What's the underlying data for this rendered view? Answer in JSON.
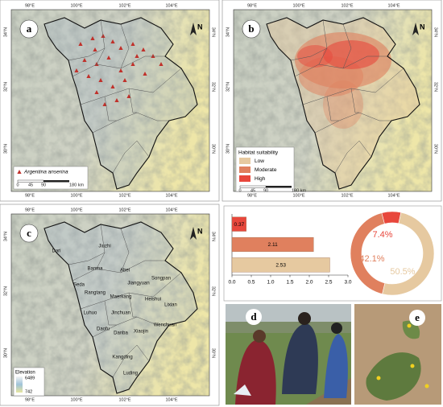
{
  "panel_labels": [
    "a",
    "b",
    "c",
    "d",
    "e"
  ],
  "map": {
    "lon_labels": [
      "98°E",
      "100°E",
      "102°E",
      "104°E"
    ],
    "lat_labels": [
      "34°N",
      "32°N",
      "30°N"
    ],
    "north": "N",
    "scale_bar": [
      "0",
      "45",
      "90",
      "180 km"
    ]
  },
  "panel_a_legend": "Argentina anserina",
  "panel_b_legend": {
    "title": "Habitat suitability",
    "items": [
      "Low",
      "Moderate",
      "High"
    ]
  },
  "panel_c_legend": {
    "title": "Elevation",
    "max": 6489,
    "min": 742
  },
  "panel_c_places": [
    "Dari",
    "Jiuzhi",
    "Banma",
    "Abei",
    "Seda",
    "Rangtang",
    "Jiangyuan",
    "Songpan",
    "Maerkang",
    "Heishui",
    "Luhuo",
    "Jinchuan",
    "Lixian",
    "Daofu",
    "Danba",
    "Xiaojin",
    "Wenchuan",
    "Kangding",
    "Luding"
  ],
  "chart_data": [
    {
      "type": "bar",
      "orientation": "horizontal",
      "values": [
        0.37,
        2.11,
        2.53
      ],
      "colors": [
        "#e8473c",
        "#e0805e",
        "#e6c9a0"
      ],
      "xlim": [
        0,
        3
      ],
      "xticks": [
        {
          "value": 0,
          "label": "0.0"
        },
        0.5,
        {
          "value": 1,
          "label": "1.0"
        },
        1.5,
        {
          "value": 2,
          "label": "2.0"
        },
        2.5,
        {
          "value": 3,
          "label": "3.0"
        }
      ]
    },
    {
      "type": "donut",
      "values": [
        7.4,
        42.1,
        50.5
      ],
      "value_labels": [
        "7.4%",
        "42.1%",
        "50.5%"
      ],
      "colors": [
        "#e8473c",
        "#e0805e",
        "#e6c9a0"
      ]
    }
  ]
}
